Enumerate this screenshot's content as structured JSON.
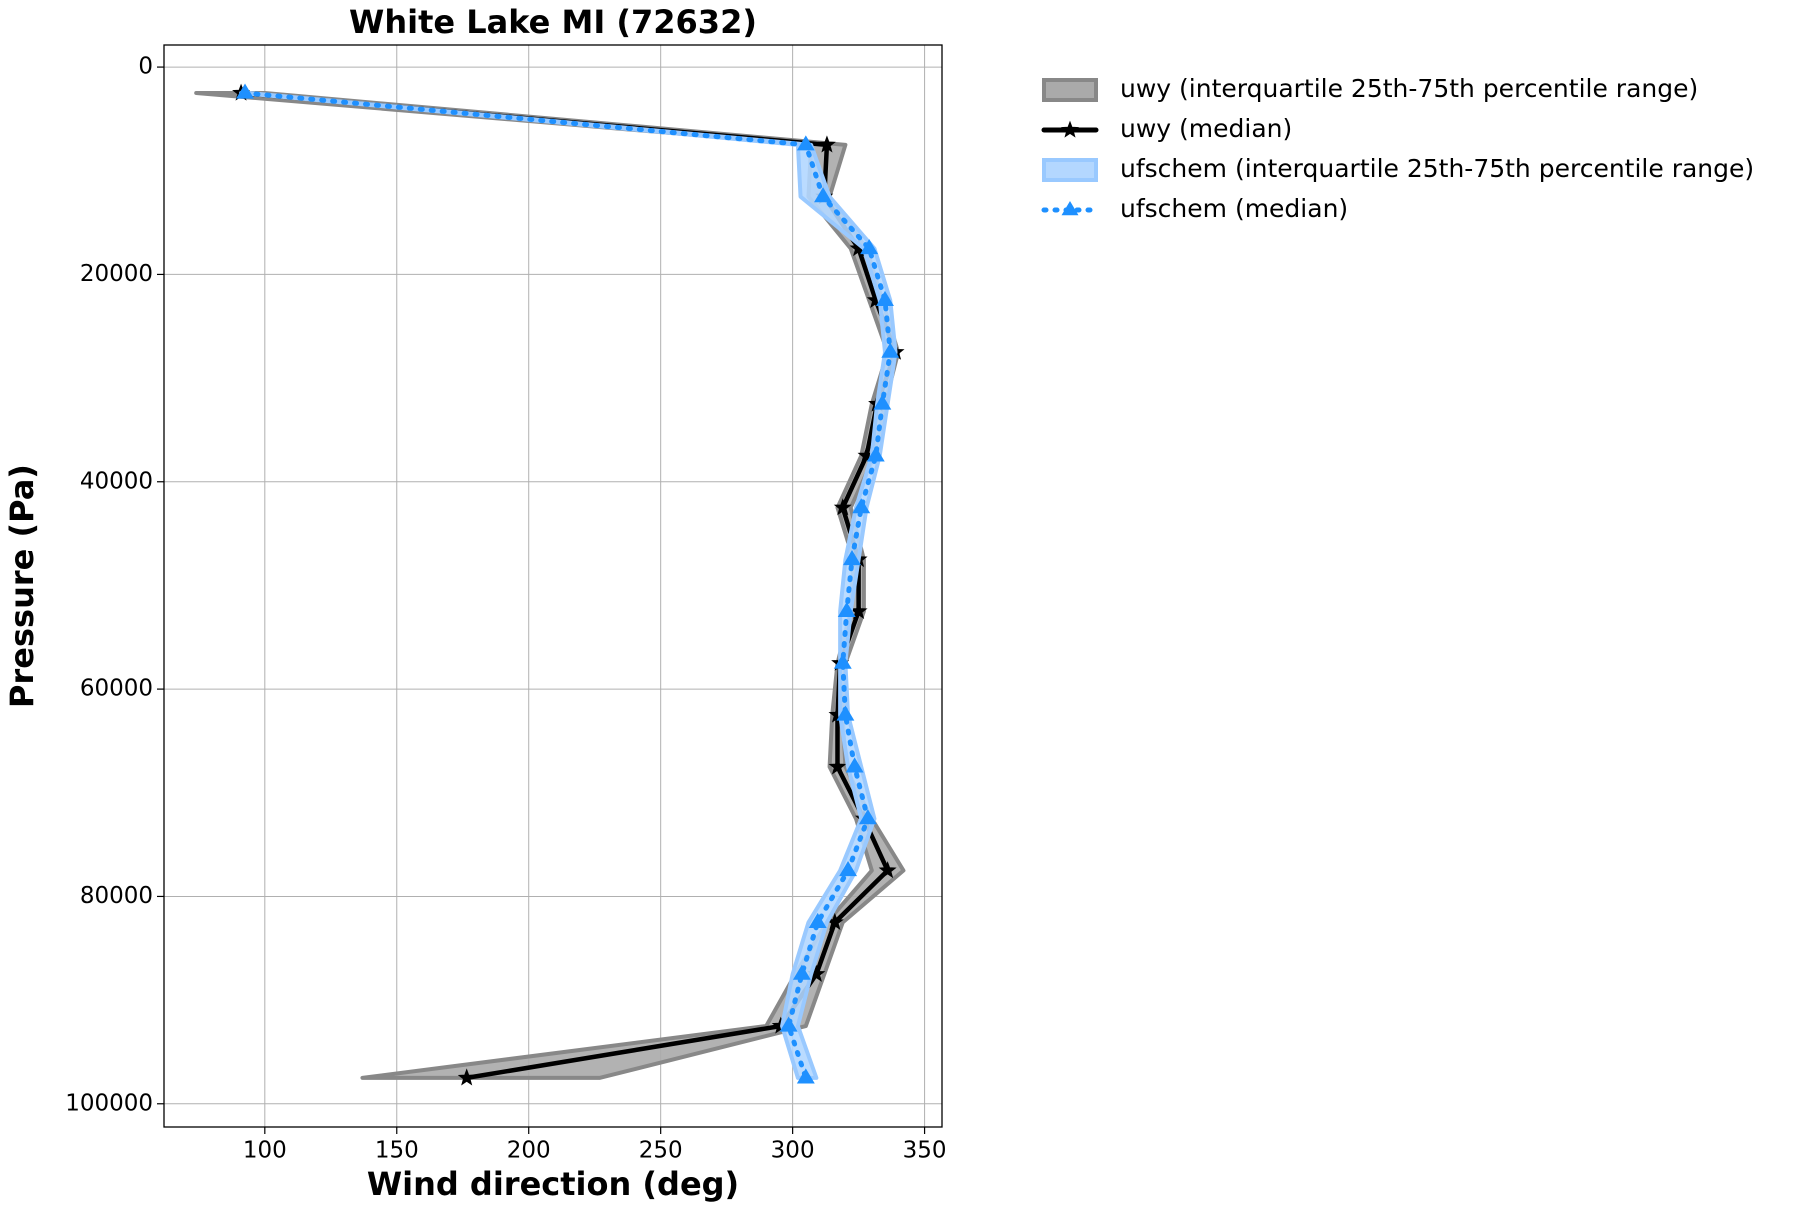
{
  "chart_data": {
    "type": "profile",
    "title": "White Lake MI (72632)",
    "xlabel": "Wind direction (deg)",
    "ylabel": "Pressure (Pa)",
    "y": [
      2500,
      7500,
      12500,
      17500,
      22500,
      27500,
      32500,
      37500,
      42500,
      47500,
      52500,
      57500,
      62500,
      67500,
      72500,
      77500,
      82500,
      87500,
      92500,
      97500
    ],
    "series": [
      {
        "name": "uwy (interquartile 25th-75th percentile range)",
        "kind": "band",
        "color": "#aaaaaa",
        "edgecolor": "#888888",
        "lower": [
          74,
          307,
          306,
          322,
          329,
          336,
          330,
          326,
          317,
          323,
          322,
          317,
          315,
          314,
          324,
          330,
          313,
          301,
          290,
          137
        ],
        "upper": [
          100,
          320,
          314,
          328,
          334,
          340,
          335,
          331,
          322,
          327,
          327,
          320,
          319,
          320,
          330,
          342,
          319,
          312,
          305,
          227
        ]
      },
      {
        "name": "uwy (median)",
        "kind": "line",
        "marker": "star",
        "color": "#000000",
        "dash": "solid",
        "values": [
          91,
          313,
          312,
          325,
          331.5,
          339,
          332,
          328,
          319,
          325,
          325,
          318,
          317,
          317,
          327,
          336,
          316,
          309,
          295.5,
          176.5
        ]
      },
      {
        "name": "ufschem (interquartile 25th-75th percentile range)",
        "kind": "band",
        "color": "#b3d7ff",
        "edgecolor": "#99c9ff",
        "lower": [
          91,
          302,
          303,
          327,
          333,
          335,
          332,
          330,
          324,
          320,
          318,
          318,
          318,
          321,
          326,
          318,
          306,
          300,
          296,
          302
        ],
        "upper": [
          94,
          307,
          314,
          331,
          337,
          339,
          336,
          333,
          328,
          325,
          322,
          320,
          321,
          326,
          331,
          324,
          313,
          307,
          302,
          309
        ]
      },
      {
        "name": "ufschem (median)",
        "kind": "line",
        "marker": "triangle",
        "color": "#1e90ff",
        "dash": "dotted",
        "values": [
          92.5,
          305,
          311.5,
          329,
          335,
          337,
          334,
          331.5,
          326,
          322.5,
          320.5,
          319,
          320,
          323.5,
          328.5,
          321,
          309.5,
          303.5,
          298.5,
          305
        ]
      }
    ],
    "xlim": [
      61.8,
      356.6
    ],
    "xticks": [
      100,
      150,
      200,
      250,
      300,
      350
    ],
    "ylim": [
      -2130,
      102240
    ],
    "y_inverted": true,
    "yticks": [
      0,
      20000,
      40000,
      60000,
      80000,
      100000
    ],
    "grid": true,
    "legend": "outside upper right"
  }
}
